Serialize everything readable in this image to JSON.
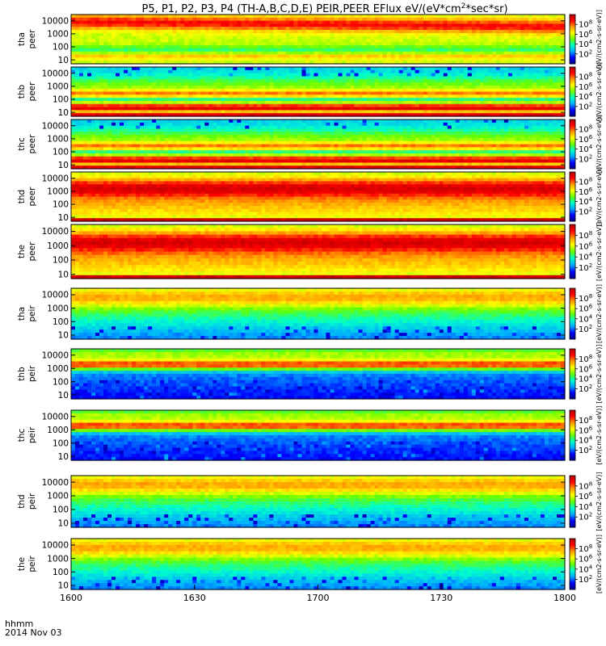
{
  "chart_data": {
    "type": "heatmap",
    "title": "P5, P1, P2, P3, P4 (TH-A,B,C,D,E) PEIR,PEER EFlux eV/(eV*cm^2*sec*sr)",
    "title_parts": [
      "P5, P1, P2, P3, P4 (TH-A,B,C,D,E) PEIR,PEER EFlux eV/(eV*cm",
      "2",
      "*sec*sr)"
    ],
    "x_ticks": [
      "1600",
      "1630",
      "1700",
      "1730",
      "1800"
    ],
    "x_label": "hhmm",
    "date_label": "2014 Nov 03",
    "xlim": [
      "16:00",
      "18:00"
    ],
    "y_scale": "log",
    "y_ticks": [
      "10000",
      "1000",
      "100",
      "10"
    ],
    "ylim": [
      5,
      30000
    ],
    "colorbar_label": "[eV/(cm2-s-sr-eV)]",
    "colorbar_ticks": [
      "10^8",
      "10^6",
      "10^4",
      "10^2"
    ],
    "colormap": [
      "#00008b",
      "#0000ff",
      "#00aaff",
      "#00ffcc",
      "#66ff00",
      "#ffff00",
      "#ff9900",
      "#ff0000",
      "#b30000"
    ],
    "panels": [
      {
        "probe": "tha",
        "species": "peer",
        "label": "tha peer",
        "pattern": "tha-peer"
      },
      {
        "probe": "thb",
        "species": "peer",
        "label": "thb peer",
        "pattern": "peer-band"
      },
      {
        "probe": "thc",
        "species": "peer",
        "label": "thc peer",
        "pattern": "peer-band"
      },
      {
        "probe": "thd",
        "species": "peer",
        "label": "thd peer",
        "pattern": "peer-hot"
      },
      {
        "probe": "the",
        "species": "peer",
        "label": "the peer",
        "pattern": "peer-hot"
      },
      {
        "probe": "tha",
        "species": "peir",
        "label": "tha peir",
        "pattern": "peir"
      },
      {
        "probe": "thb",
        "species": "peir",
        "label": "thb peir",
        "pattern": "peir-band"
      },
      {
        "probe": "thc",
        "species": "peir",
        "label": "thc peir",
        "pattern": "peir-band"
      },
      {
        "probe": "thd",
        "species": "peir",
        "label": "thd peir",
        "pattern": "peir"
      },
      {
        "probe": "the",
        "species": "peir",
        "label": "the peir",
        "pattern": "peir"
      }
    ]
  }
}
